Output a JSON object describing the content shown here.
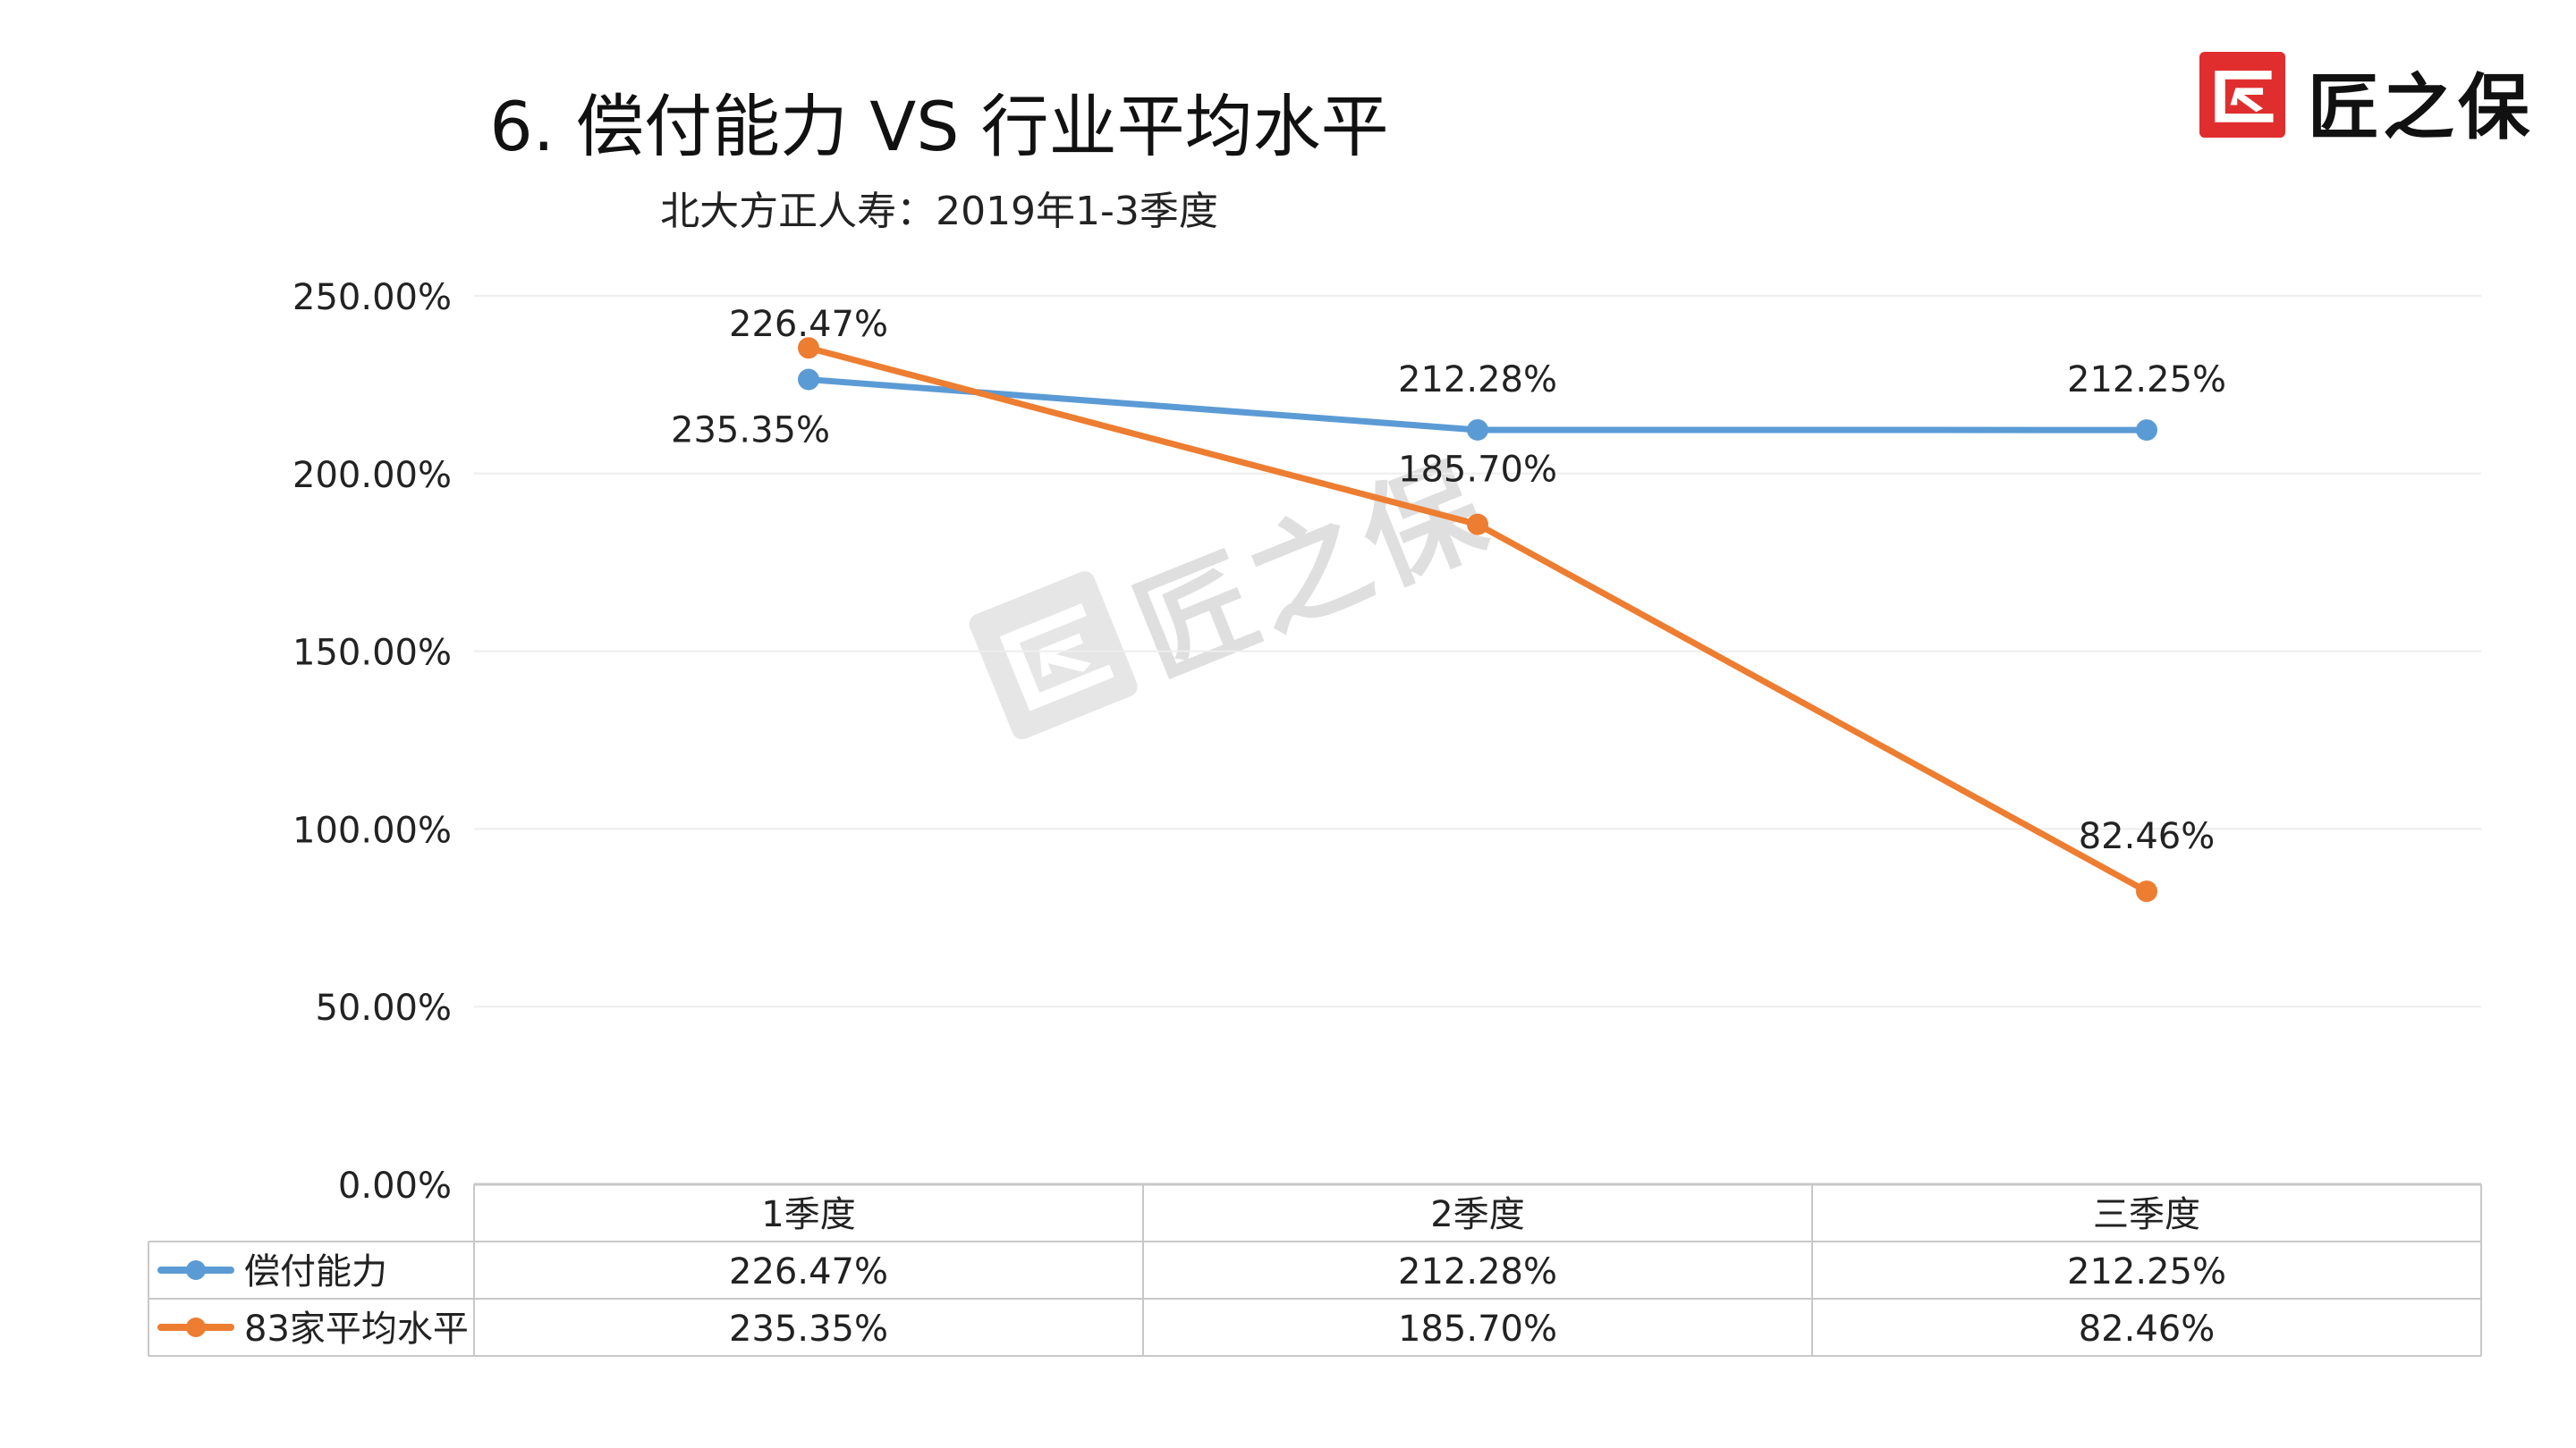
{
  "header": {
    "title": "6.  偿付能力  VS  行业平均水平",
    "subtitle": "北大方正人寿：2019年1-3季度"
  },
  "logo": {
    "text": "匠之保",
    "mark_icon": "brand-logo-icon",
    "color": "#e02e2e"
  },
  "watermark": {
    "text": "匠之保",
    "mark_icon": "watermark-logo-icon"
  },
  "chart_data": {
    "type": "line",
    "categories": [
      "1季度",
      "2季度",
      "三季度"
    ],
    "series": [
      {
        "name": "偿付能力",
        "values": [
          226.47,
          212.28,
          212.25
        ],
        "labels": [
          "226.47%",
          "212.28%",
          "212.25%"
        ],
        "color": "#5b9bd5"
      },
      {
        "name": "83家平均水平",
        "values": [
          235.35,
          185.7,
          82.46
        ],
        "labels": [
          "235.35%",
          "185.70%",
          "82.46%"
        ],
        "color": "#ed7d31"
      }
    ],
    "y_ticks": [
      "0.00%",
      "50.00%",
      "100.00%",
      "150.00%",
      "200.00%",
      "250.00%"
    ],
    "ylim": [
      0,
      250
    ],
    "grid": true,
    "legend": "data-table",
    "data_table": true,
    "grid_color": "#eeeeee"
  }
}
